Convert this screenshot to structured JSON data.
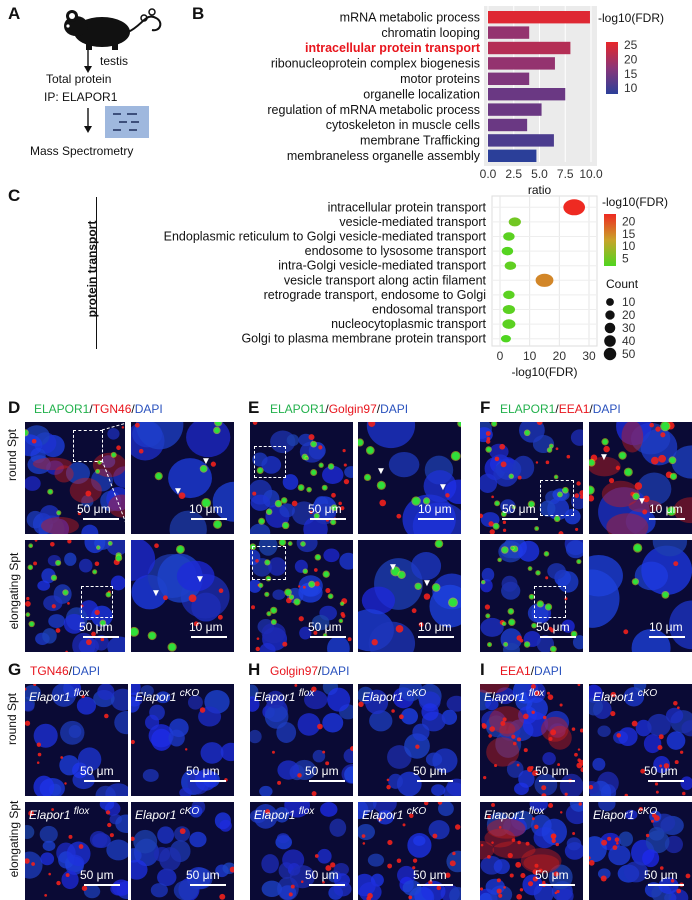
{
  "panels": {
    "A": {
      "letter": "A",
      "tissue": "testis",
      "step1": "Total protein",
      "step2": "IP: ELAPOR1",
      "step3": "Mass Spectrometry"
    },
    "B": {
      "letter": "B",
      "legend_title": "-log10(FDR)",
      "xlabel": "ratio"
    },
    "C": {
      "letter": "C",
      "group_label": "protein transport",
      "xlabel": "-log10(FDR)",
      "color_legend_title": "-log10(FDR)",
      "size_legend_title": "Count"
    },
    "D": {
      "letter": "D",
      "m1": "ELAPOR1",
      "sep1": "/",
      "m2": "TGN46",
      "sep2": "/",
      "m3": "DAPI"
    },
    "E": {
      "letter": "E",
      "m1": "ELAPOR1",
      "sep1": "/",
      "m2": "Golgin97",
      "sep2": "/",
      "m3": "DAPI"
    },
    "F": {
      "letter": "F",
      "m1": "ELAPOR1",
      "sep1": "/",
      "m2": "EEA1",
      "sep2": "/",
      "m3": "DAPI"
    },
    "G": {
      "letter": "G",
      "m1": "TGN46",
      "sep": "/",
      "m2": "DAPI"
    },
    "H": {
      "letter": "H",
      "m1": "Golgin97",
      "sep": "/",
      "m2": "DAPI"
    },
    "I": {
      "letter": "I",
      "m1": "EEA1",
      "sep": "/",
      "m2": "DAPI"
    }
  },
  "row_labels": {
    "round": "round Spt",
    "elongating": "elongating Spt"
  },
  "genotypes": {
    "flox_gene": "Elapor1",
    "flox_sup": "flox",
    "cko_gene": "Elapor1",
    "cko_sup": "cKO"
  },
  "scales": {
    "big": "50 μm",
    "small": "10 μm"
  },
  "colors": {
    "green": "#22b14c",
    "red": "#e8141c",
    "blue": "#2a52be",
    "highlight": "#e8141c"
  },
  "chart_data": [
    {
      "type": "bar",
      "orientation": "horizontal",
      "categories": [
        "mRNA metabolic process",
        "chromatin looping",
        "intracellular protein transport",
        "ribonucleoprotein complex biogenesis",
        "motor proteins",
        "organelle localization",
        "regulation of mRNA metabolic process",
        "cytoskeleton in muscle cells",
        "membrane Trafficking",
        "membraneless organelle assembly"
      ],
      "highlighted_category": "intracellular protein transport",
      "values": [
        9.9,
        4.0,
        8.0,
        6.5,
        4.0,
        7.5,
        5.2,
        3.8,
        6.4,
        4.7
      ],
      "fdr": [
        25,
        18,
        21,
        18,
        16,
        14,
        14,
        14,
        11,
        8
      ],
      "xlim": [
        0,
        10
      ],
      "xticks": [
        "0.0",
        "2.5",
        "5.0",
        "7.5",
        "10.0"
      ],
      "color_ticks": [
        "25",
        "20",
        "15",
        "10"
      ],
      "color_range": [
        8,
        26
      ],
      "xlabel": "ratio",
      "legend_title": "-log10(FDR)"
    },
    {
      "type": "scatter",
      "categories": [
        "intracellular protein transport",
        "vesicle-mediated transport",
        "Endoplasmic reticulum to Golgi vesicle-mediated transport",
        "endosome to lysosome transport",
        "intra-Golgi vesicle-mediated transport",
        "vesicle transport along actin filament",
        "retrograde transport, endosome to Golgi",
        "endosomal transport",
        "nucleocytoplasmic transport",
        "Golgi to plasma membrane protein transport"
      ],
      "x": [
        25,
        5,
        3,
        2.5,
        3.5,
        15,
        3,
        3,
        3,
        2
      ],
      "count": [
        50,
        10,
        8,
        8,
        8,
        30,
        8,
        10,
        12,
        5
      ],
      "xlim": [
        0,
        30
      ],
      "xticks": [
        "0",
        "10",
        "20",
        "30"
      ],
      "xlabel": "-log10(FDR)",
      "color_legend_title": "-log10(FDR)",
      "color_ticks": [
        "20",
        "15",
        "10",
        "5"
      ],
      "color_range": [
        2,
        23
      ],
      "size_legend_title": "Count",
      "size_ticks": [
        "10",
        "20",
        "30",
        "40",
        "50"
      ]
    }
  ]
}
